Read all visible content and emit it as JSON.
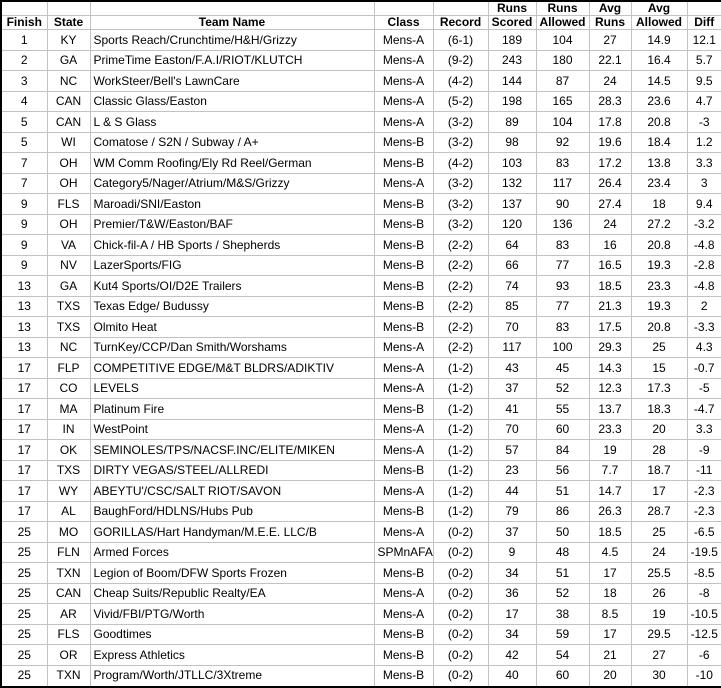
{
  "table": {
    "header_top": [
      "",
      "",
      "",
      "",
      "",
      "Runs",
      "Runs",
      "Avg",
      "Avg",
      ""
    ],
    "header_main": [
      "Finish",
      "State",
      "Team Name",
      "Class",
      "Record",
      "Scored",
      "Allowed",
      "Runs",
      "Allowed",
      "Diff"
    ],
    "column_keys": [
      "finish",
      "state",
      "team-name",
      "class",
      "record",
      "runs-scored",
      "runs-allowed",
      "avg-runs",
      "avg-allowed",
      "diff"
    ],
    "column_align": [
      "center",
      "center",
      "left",
      "center",
      "center",
      "center",
      "center",
      "center",
      "center",
      "center"
    ],
    "rows": [
      [
        "1",
        "KY",
        "Sports Reach/Crunchtime/H&H/Grizzy",
        "Mens-A",
        "(6-1)",
        "189",
        "104",
        "27",
        "14.9",
        "12.1"
      ],
      [
        "2",
        "GA",
        "PrimeTime Easton/F.A.I/RIOT/KLUTCH",
        "Mens-A",
        "(9-2)",
        "243",
        "180",
        "22.1",
        "16.4",
        "5.7"
      ],
      [
        "3",
        "NC",
        "WorkSteer/Bell's LawnCare",
        "Mens-A",
        "(4-2)",
        "144",
        "87",
        "24",
        "14.5",
        "9.5"
      ],
      [
        "4",
        "CAN",
        "Classic Glass/Easton",
        "Mens-A",
        "(5-2)",
        "198",
        "165",
        "28.3",
        "23.6",
        "4.7"
      ],
      [
        "5",
        "CAN",
        "L & S Glass",
        "Mens-A",
        "(3-2)",
        "89",
        "104",
        "17.8",
        "20.8",
        "-3"
      ],
      [
        "5",
        "WI",
        "Comatose / S2N / Subway / A+",
        "Mens-B",
        "(3-2)",
        "98",
        "92",
        "19.6",
        "18.4",
        "1.2"
      ],
      [
        "7",
        "OH",
        "WM Comm Roofing/Ely Rd Reel/German",
        "Mens-B",
        "(4-2)",
        "103",
        "83",
        "17.2",
        "13.8",
        "3.3"
      ],
      [
        "7",
        "OH",
        "Category5/Nager/Atrium/M&S/Grizzy",
        "Mens-A",
        "(3-2)",
        "132",
        "117",
        "26.4",
        "23.4",
        "3"
      ],
      [
        "9",
        "FLS",
        "Maroadi/SNI/Easton",
        "Mens-B",
        "(3-2)",
        "137",
        "90",
        "27.4",
        "18",
        "9.4"
      ],
      [
        "9",
        "OH",
        "Premier/T&W/Easton/BAF",
        "Mens-B",
        "(3-2)",
        "120",
        "136",
        "24",
        "27.2",
        "-3.2"
      ],
      [
        "9",
        "VA",
        "Chick-fil-A / HB Sports / Shepherds",
        "Mens-B",
        "(2-2)",
        "64",
        "83",
        "16",
        "20.8",
        "-4.8"
      ],
      [
        "9",
        "NV",
        "LazerSports/FIG",
        "Mens-B",
        "(2-2)",
        "66",
        "77",
        "16.5",
        "19.3",
        "-2.8"
      ],
      [
        "13",
        "GA",
        "Kut4 Sports/OI/D2E Trailers",
        "Mens-B",
        "(2-2)",
        "74",
        "93",
        "18.5",
        "23.3",
        "-4.8"
      ],
      [
        "13",
        "TXS",
        "Texas Edge/ Budussy",
        "Mens-B",
        "(2-2)",
        "85",
        "77",
        "21.3",
        "19.3",
        "2"
      ],
      [
        "13",
        "TXS",
        "Olmito Heat",
        "Mens-B",
        "(2-2)",
        "70",
        "83",
        "17.5",
        "20.8",
        "-3.3"
      ],
      [
        "13",
        "NC",
        "TurnKey/CCP/Dan Smith/Worshams",
        "Mens-A",
        "(2-2)",
        "117",
        "100",
        "29.3",
        "25",
        "4.3"
      ],
      [
        "17",
        "FLP",
        "COMPETITIVE EDGE/M&T BLDRS/ADIKTIV",
        "Mens-A",
        "(1-2)",
        "43",
        "45",
        "14.3",
        "15",
        "-0.7"
      ],
      [
        "17",
        "CO",
        "LEVELS",
        "Mens-A",
        "(1-2)",
        "37",
        "52",
        "12.3",
        "17.3",
        "-5"
      ],
      [
        "17",
        "MA",
        "Platinum Fire",
        "Mens-B",
        "(1-2)",
        "41",
        "55",
        "13.7",
        "18.3",
        "-4.7"
      ],
      [
        "17",
        "IN",
        "WestPoint",
        "Mens-A",
        "(1-2)",
        "70",
        "60",
        "23.3",
        "20",
        "3.3"
      ],
      [
        "17",
        "OK",
        "SEMINOLES/TPS/NACSF.INC/ELITE/MIKEN",
        "Mens-A",
        "(1-2)",
        "57",
        "84",
        "19",
        "28",
        "-9"
      ],
      [
        "17",
        "TXS",
        "DIRTY VEGAS/STEEL/ALLREDI",
        "Mens-B",
        "(1-2)",
        "23",
        "56",
        "7.7",
        "18.7",
        "-11"
      ],
      [
        "17",
        "WY",
        "ABEYTU'/CSC/SALT RIOT/SAVON",
        "Mens-A",
        "(1-2)",
        "44",
        "51",
        "14.7",
        "17",
        "-2.3"
      ],
      [
        "17",
        "AL",
        "BaughFord/HDLNS/Hubs Pub",
        "Mens-B",
        "(1-2)",
        "79",
        "86",
        "26.3",
        "28.7",
        "-2.3"
      ],
      [
        "25",
        "MO",
        "GORILLAS/Hart Handyman/M.E.E. LLC/B",
        "Mens-A",
        "(0-2)",
        "37",
        "50",
        "18.5",
        "25",
        "-6.5"
      ],
      [
        "25",
        "FLN",
        "Armed Forces",
        "SPMnAFA",
        "(0-2)",
        "9",
        "48",
        "4.5",
        "24",
        "-19.5"
      ],
      [
        "25",
        "TXN",
        "Legion of Boom/DFW Sports Frozen",
        "Mens-B",
        "(0-2)",
        "34",
        "51",
        "17",
        "25.5",
        "-8.5"
      ],
      [
        "25",
        "CAN",
        "Cheap Suits/Republic Realty/EA",
        "Mens-A",
        "(0-2)",
        "36",
        "52",
        "18",
        "26",
        "-8"
      ],
      [
        "25",
        "AR",
        "Vivid/FBI/PTG/Worth",
        "Mens-A",
        "(0-2)",
        "17",
        "38",
        "8.5",
        "19",
        "-10.5"
      ],
      [
        "25",
        "FLS",
        "Goodtimes",
        "Mens-B",
        "(0-2)",
        "34",
        "59",
        "17",
        "29.5",
        "-12.5"
      ],
      [
        "25",
        "OR",
        "Express Athletics",
        "Mens-B",
        "(0-2)",
        "42",
        "54",
        "21",
        "27",
        "-6"
      ],
      [
        "25",
        "TXN",
        "Program/Worth/JTLLC/3Xtreme",
        "Mens-B",
        "(0-2)",
        "40",
        "60",
        "20",
        "30",
        "-10"
      ]
    ]
  },
  "colors": {
    "background": "#ffffff",
    "text": "#000000",
    "grid_line": "#c2c2c2",
    "outer_border": "#000000"
  }
}
